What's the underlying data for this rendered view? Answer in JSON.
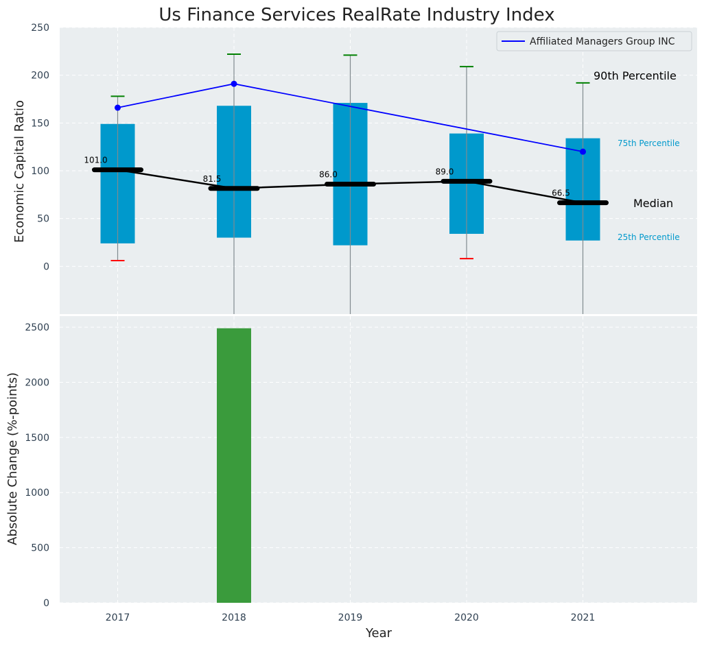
{
  "chart_data": {
    "title": "Us Finance Services RealRate Industry Index",
    "xlabel": "Year",
    "categories": [
      "2017",
      "2018",
      "2019",
      "2020",
      "2021"
    ],
    "colors": {
      "box": "#0099cc",
      "median": "#000000",
      "company": "#0000ff",
      "whisker": "#808a8f",
      "whisker_high": "#008000",
      "whisker_low": "#ff0000",
      "change_bar": "#3a9b3c",
      "panel_bg": "#eaeef0",
      "grid": "#ffffff"
    },
    "top_panel": {
      "type": "box",
      "ylabel": "Economic Capital Ratio",
      "ylim": [
        -50,
        250
      ],
      "yticks": [
        0,
        50,
        100,
        150,
        200,
        250
      ],
      "grid": true,
      "p25": [
        24,
        30,
        22,
        34,
        27
      ],
      "p75": [
        149,
        168,
        171,
        139,
        134
      ],
      "median": [
        101.0,
        81.5,
        86.0,
        89.0,
        66.5
      ],
      "median_labels": [
        "101.0",
        "81.5",
        "86.0",
        "89.0",
        "66.5"
      ],
      "whisker_high": [
        178,
        222,
        221,
        209,
        192
      ],
      "whisker_low": [
        6,
        null,
        null,
        8,
        null
      ],
      "whisker_low_visible": [
        true,
        false,
        false,
        true,
        false
      ],
      "series": [
        {
          "name": "Affiliated Managers Group INC",
          "values": [
            166,
            191,
            null,
            null,
            120
          ]
        }
      ],
      "legend_position": "top-right",
      "annotations": {
        "p90": "90th Percentile",
        "p75": "75th Percentile",
        "median": "Median",
        "p25": "25th Percentile"
      }
    },
    "bottom_panel": {
      "type": "bar",
      "ylabel": "Absolute Change (%-points)",
      "ylim": [
        0,
        2600
      ],
      "yticks": [
        0,
        500,
        1000,
        1500,
        2000,
        2500
      ],
      "grid": true,
      "values": [
        null,
        2490,
        null,
        null,
        null
      ]
    }
  }
}
